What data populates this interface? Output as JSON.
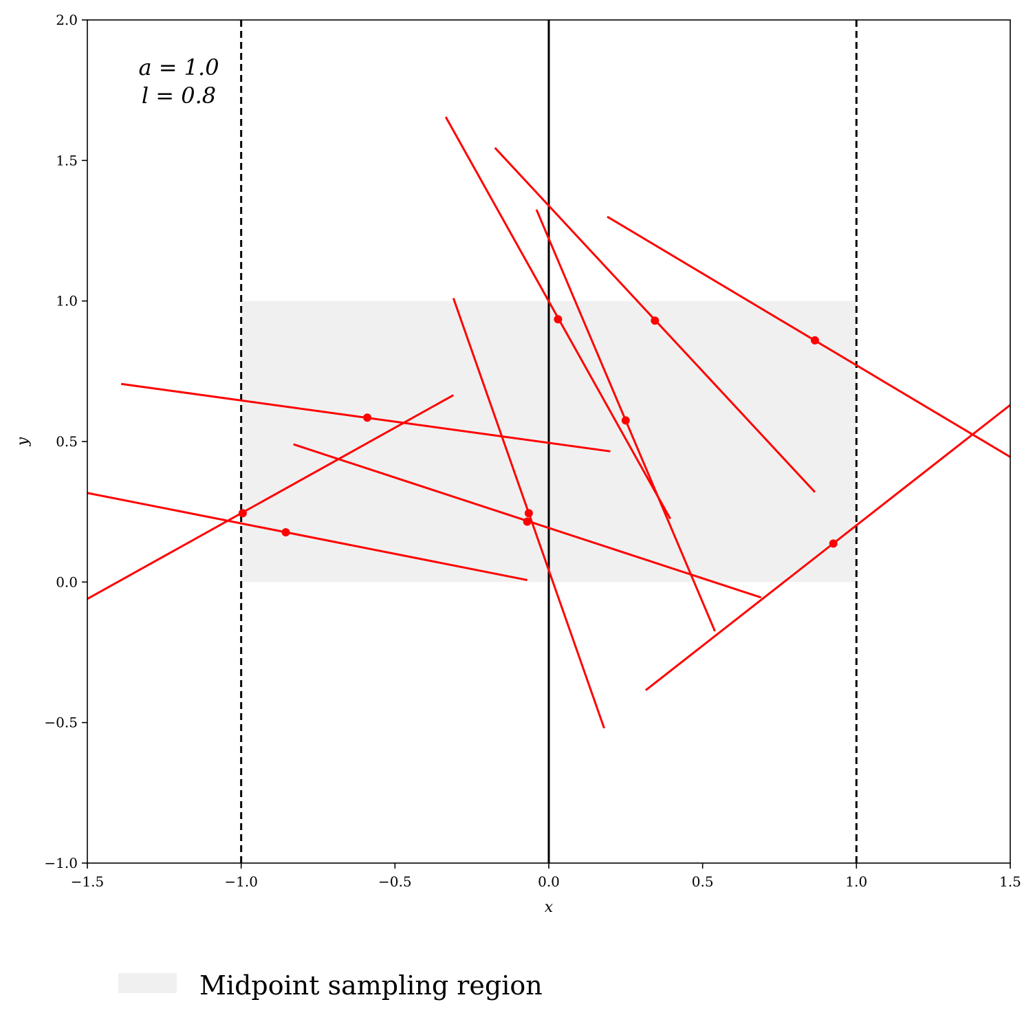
{
  "chart_data": {
    "type": "line",
    "xlabel": "x",
    "ylabel": "y",
    "xlim": [
      -1.5,
      1.5
    ],
    "ylim": [
      -1.0,
      2.0
    ],
    "grid": false,
    "x_ticks": [
      -1.5,
      -1.0,
      -0.5,
      0.0,
      0.5,
      1.0,
      1.5
    ],
    "x_tick_labels": [
      "−1.5",
      "−1.0",
      "−0.5",
      "0.0",
      "0.5",
      "1.0",
      "1.5"
    ],
    "y_ticks": [
      -1.0,
      -0.5,
      0.0,
      0.5,
      1.0,
      1.5,
      2.0
    ],
    "y_tick_labels": [
      "−1.0",
      "−0.5",
      "0.0",
      "0.5",
      "1.0",
      "1.5",
      "2.0"
    ],
    "annotation": [
      "a = 1.0",
      "l = 0.8"
    ],
    "region": {
      "label": "Midpoint sampling region",
      "x": [
        -1.0,
        1.0
      ],
      "y": [
        0.0,
        1.0
      ],
      "color": "#f0f0f0"
    },
    "vertical_lines": [
      {
        "x": -1.0,
        "style": "dashed",
        "color": "#000000"
      },
      {
        "x": 0.0,
        "style": "solid",
        "color": "#000000"
      },
      {
        "x": 1.0,
        "style": "dashed",
        "color": "#000000"
      }
    ],
    "needle_color": "#ff0000",
    "needles": [
      {
        "midpoint": [
          -0.855,
          0.177
        ],
        "x0": -1.5,
        "y0": 0.317,
        "x1": -0.07,
        "y1": 0.007
      },
      {
        "midpoint": [
          -0.995,
          0.245
        ],
        "x0": -1.5,
        "y0": -0.06,
        "x1": -0.31,
        "y1": 0.665
      },
      {
        "midpoint": [
          -0.59,
          0.585
        ],
        "x0": -1.39,
        "y0": 0.705,
        "x1": 0.2,
        "y1": 0.465
      },
      {
        "midpoint": [
          -0.065,
          0.245
        ],
        "x0": -0.31,
        "y0": 1.01,
        "x1": 0.18,
        "y1": -0.52
      },
      {
        "midpoint": [
          -0.07,
          0.215
        ],
        "x0": -0.83,
        "y0": 0.49,
        "x1": 0.69,
        "y1": -0.055
      },
      {
        "midpoint": [
          0.03,
          0.935
        ],
        "x0": -0.335,
        "y0": 1.655,
        "x1": 0.395,
        "y1": 0.225
      },
      {
        "midpoint": [
          0.25,
          0.575
        ],
        "x0": -0.04,
        "y0": 1.325,
        "x1": 0.54,
        "y1": -0.175
      },
      {
        "midpoint": [
          0.345,
          0.93
        ],
        "x0": -0.175,
        "y0": 1.545,
        "x1": 0.865,
        "y1": 0.32
      },
      {
        "midpoint": [
          0.865,
          0.86
        ],
        "x0": 0.19,
        "y0": 1.3,
        "x1": 1.5,
        "y1": 0.445
      },
      {
        "midpoint": [
          0.925,
          0.137
        ],
        "x0": 0.315,
        "y0": -0.385,
        "x1": 1.5,
        "y1": 0.63
      }
    ]
  }
}
